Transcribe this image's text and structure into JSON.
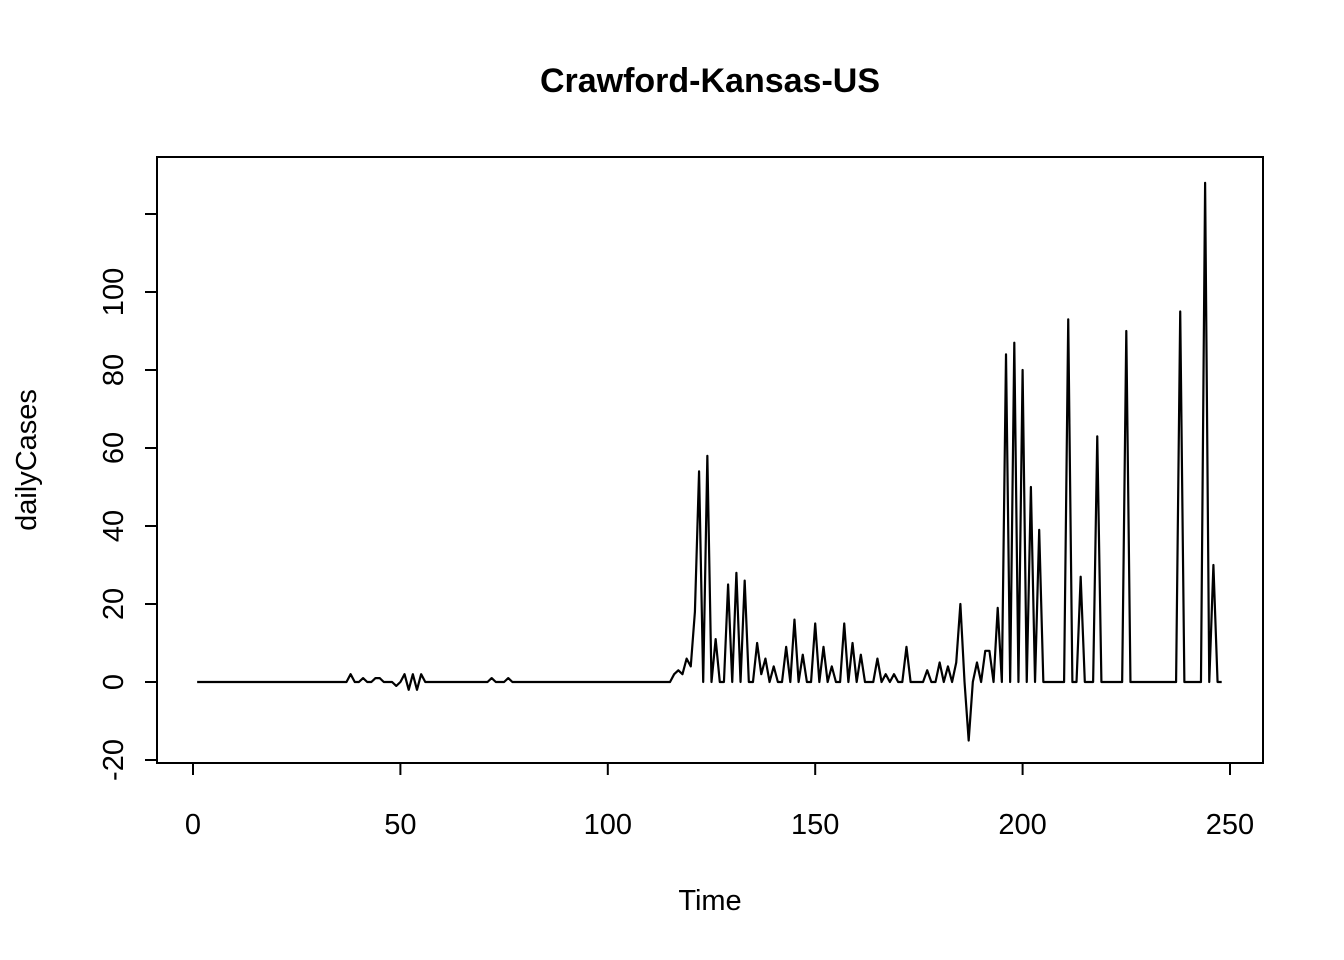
{
  "chart_data": {
    "type": "line",
    "title": "Crawford-Kansas-US",
    "xlabel": "Time",
    "ylabel": "dailyCases",
    "xlim": [
      1,
      248
    ],
    "ylim": [
      -20,
      128
    ],
    "x_ticks": [
      0,
      50,
      100,
      150,
      200,
      250
    ],
    "y_ticks": [
      -20,
      0,
      20,
      40,
      60,
      80,
      100,
      120
    ],
    "x_tick_labels": [
      "0",
      "50",
      "100",
      "150",
      "200",
      "250"
    ],
    "y_tick_labels": [
      "-20",
      "0",
      "20",
      "40",
      "60",
      "80",
      "100",
      ""
    ],
    "grid": false,
    "series": [
      {
        "x_start": 1,
        "x_step": 1,
        "values": [
          0,
          0,
          0,
          0,
          0,
          0,
          0,
          0,
          0,
          0,
          0,
          0,
          0,
          0,
          0,
          0,
          0,
          0,
          0,
          0,
          0,
          0,
          0,
          0,
          0,
          0,
          0,
          0,
          0,
          0,
          0,
          0,
          0,
          0,
          0,
          0,
          0,
          2,
          0,
          0,
          1,
          0,
          0,
          1,
          1,
          0,
          0,
          0,
          -1,
          0,
          2,
          -2,
          2,
          -2,
          2,
          0,
          0,
          0,
          0,
          0,
          0,
          0,
          0,
          0,
          0,
          0,
          0,
          0,
          0,
          0,
          0,
          1,
          0,
          0,
          0,
          1,
          0,
          0,
          0,
          0,
          0,
          0,
          0,
          0,
          0,
          0,
          0,
          0,
          0,
          0,
          0,
          0,
          0,
          0,
          0,
          0,
          0,
          0,
          0,
          0,
          0,
          0,
          0,
          0,
          0,
          0,
          0,
          0,
          0,
          0,
          0,
          0,
          0,
          0,
          0,
          2,
          3,
          2,
          6,
          4,
          18,
          54,
          0,
          58,
          0,
          11,
          0,
          0,
          25,
          0,
          28,
          0,
          26,
          0,
          0,
          10,
          2,
          6,
          0,
          4,
          0,
          0,
          9,
          0,
          16,
          0,
          7,
          0,
          0,
          15,
          0,
          9,
          0,
          4,
          0,
          0,
          15,
          0,
          10,
          0,
          7,
          0,
          0,
          0,
          6,
          0,
          2,
          0,
          2,
          0,
          0,
          9,
          0,
          0,
          0,
          0,
          3,
          0,
          0,
          5,
          0,
          4,
          0,
          5,
          20,
          0,
          -15,
          0,
          5,
          0,
          8,
          8,
          0,
          19,
          0,
          84,
          0,
          87,
          0,
          80,
          0,
          50,
          0,
          39,
          0,
          0,
          0,
          0,
          0,
          0,
          93,
          0,
          0,
          27,
          0,
          0,
          0,
          63,
          0,
          0,
          0,
          0,
          0,
          0,
          90,
          0,
          0,
          0,
          0,
          0,
          0,
          0,
          0,
          0,
          0,
          0,
          0,
          95,
          0,
          0,
          0,
          0,
          0,
          128,
          0,
          30,
          0,
          0
        ]
      }
    ]
  }
}
